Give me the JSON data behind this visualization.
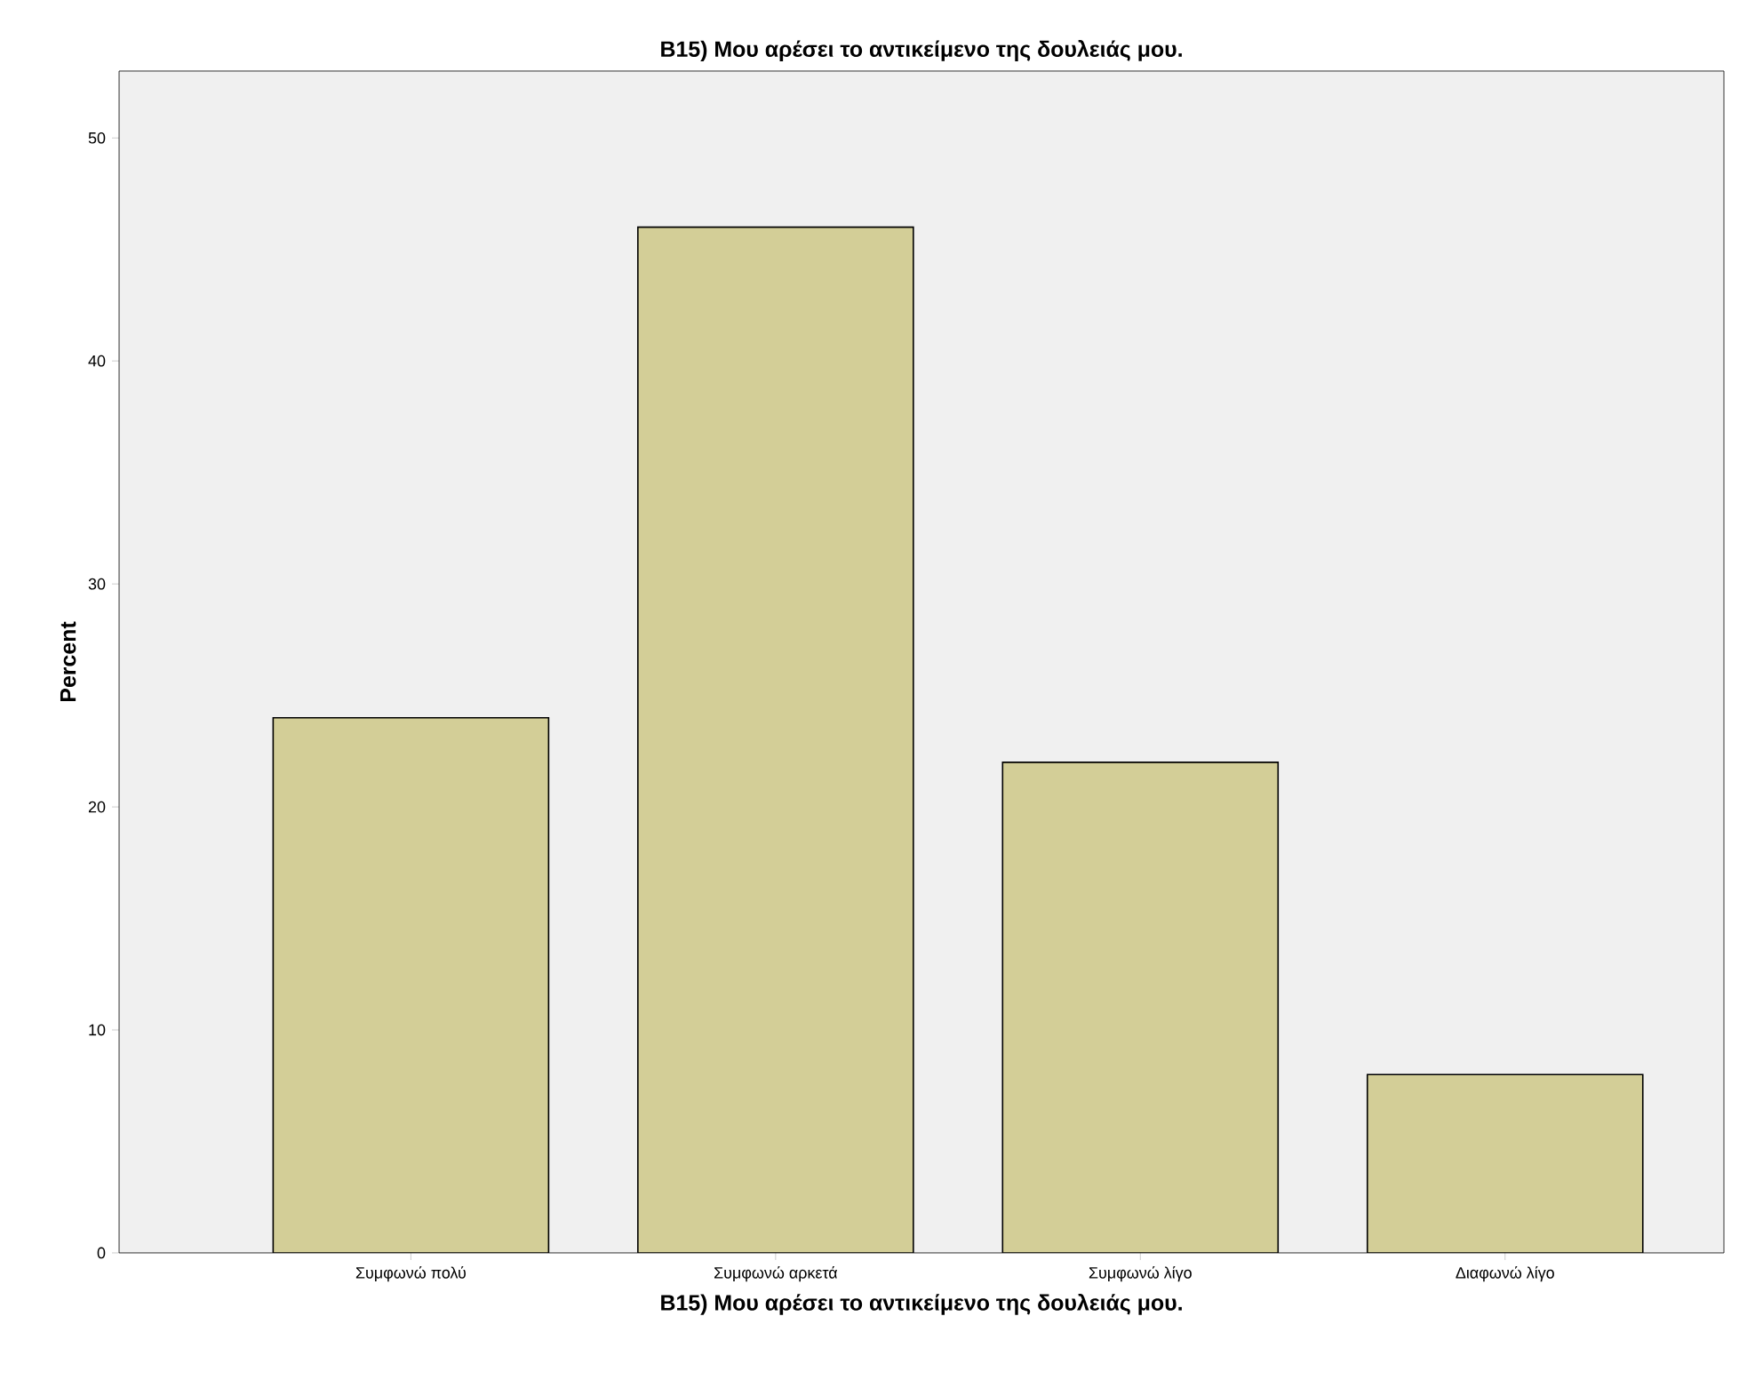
{
  "chart_data": {
    "type": "bar",
    "title": "B15) Μου αρέσει το αντικείμενο της δουλειάς μου.",
    "xlabel": "B15) Μου αρέσει το αντικείμενο της δουλειάς μου.",
    "ylabel": "Percent",
    "categories": [
      "Συμφωνώ πολύ",
      "Συμφωνώ αρκετά",
      "Συμφωνώ λίγο",
      "Διαφωνώ λίγο"
    ],
    "values": [
      24,
      46,
      22,
      8
    ],
    "color": "#d3ce97",
    "ylim": [
      0,
      53
    ],
    "yticks": [
      0,
      10,
      20,
      30,
      40,
      50
    ],
    "grid": false
  }
}
